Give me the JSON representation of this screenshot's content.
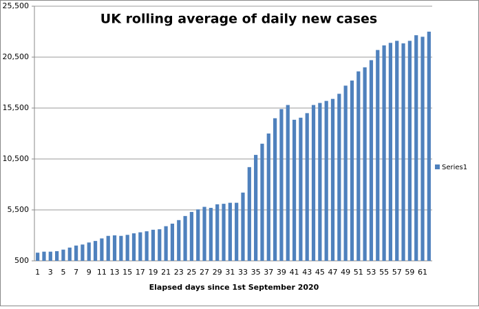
{
  "chart_data": {
    "type": "bar",
    "title": "UK rolling average of  daily new cases",
    "x_label": "Elapsed days since 1st September 2020",
    "categories": [
      1,
      null,
      3,
      null,
      5,
      null,
      7,
      null,
      9,
      null,
      11,
      null,
      13,
      null,
      15,
      null,
      17,
      null,
      19,
      null,
      21,
      null,
      23,
      null,
      25,
      null,
      27,
      null,
      29,
      null,
      31,
      null,
      33,
      null,
      35,
      null,
      37,
      null,
      39,
      null,
      41,
      null,
      43,
      null,
      45,
      null,
      47,
      null,
      49,
      null,
      51,
      null,
      53,
      null,
      55,
      null,
      57,
      null,
      59,
      null,
      61,
      null
    ],
    "series": [
      {
        "name": "Series1",
        "color": "#4f81bd",
        "values": [
          1300,
          1400,
          1400,
          1450,
          1600,
          1800,
          2000,
          2100,
          2300,
          2450,
          2700,
          2950,
          3000,
          2950,
          3050,
          3200,
          3300,
          3400,
          3550,
          3600,
          3900,
          4150,
          4500,
          4900,
          5300,
          5550,
          5800,
          5700,
          6050,
          6100,
          6200,
          6200,
          7200,
          9700,
          10900,
          12000,
          13000,
          14500,
          15400,
          15800,
          14350,
          14550,
          15000,
          15800,
          16000,
          16200,
          16400,
          16900,
          17700,
          18200,
          19100,
          19500,
          20200,
          21200,
          21650,
          21900,
          22100,
          21850,
          22100,
          22650,
          22500,
          23000
        ]
      }
    ],
    "ylim": [
      500,
      25500
    ],
    "yticks": [
      500,
      {
        "value": 5500,
        "label": "5,500"
      },
      {
        "value": 10500,
        "label": "10,500"
      },
      {
        "value": 15500,
        "label": "15,500"
      },
      {
        "value": 20500,
        "label": "20,500"
      },
      {
        "value": 25500,
        "label": "25,500"
      }
    ],
    "grid": true,
    "legend": "right"
  }
}
